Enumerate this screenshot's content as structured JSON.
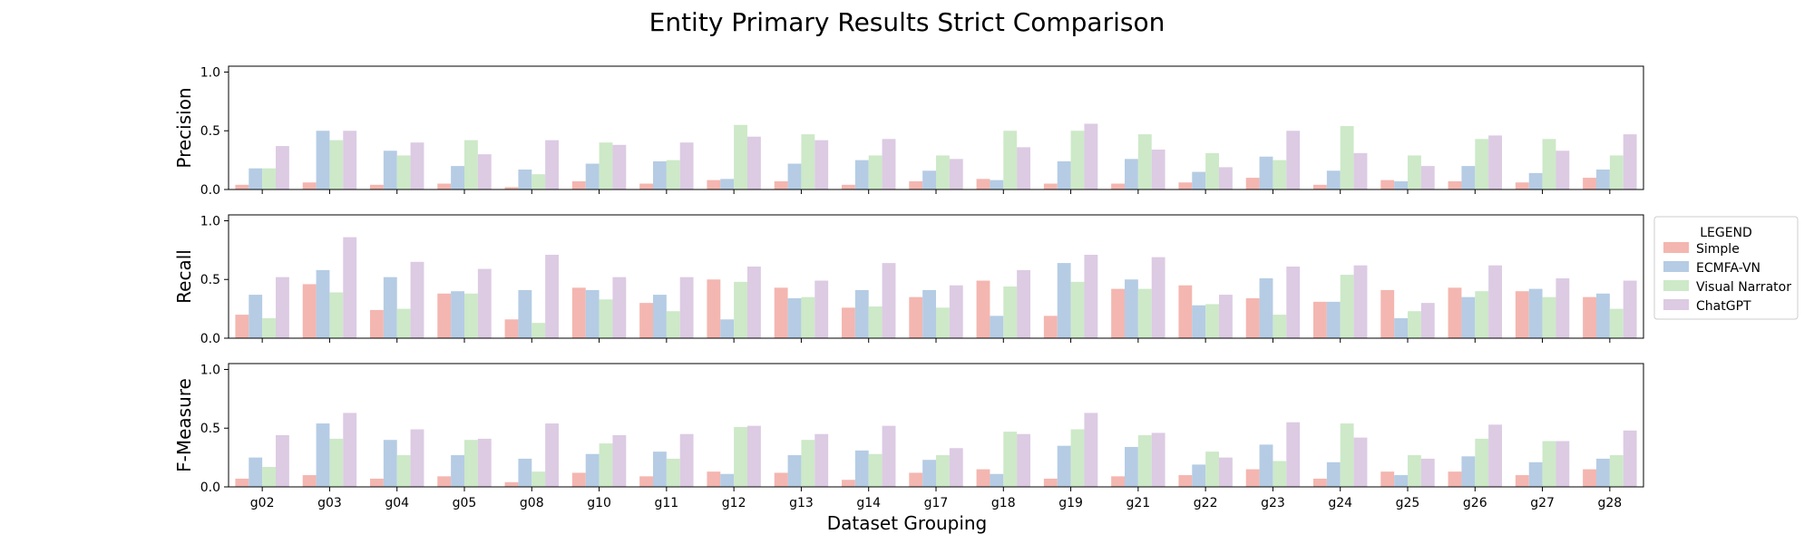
{
  "chart_data": {
    "type": "bar",
    "title": "Entity Primary Results Strict Comparison",
    "xlabel": "Dataset Grouping",
    "categories": [
      "g02",
      "g03",
      "g04",
      "g05",
      "g08",
      "g10",
      "g11",
      "g12",
      "g13",
      "g14",
      "g17",
      "g18",
      "g19",
      "g21",
      "g22",
      "g23",
      "g24",
      "g25",
      "g26",
      "g27",
      "g28"
    ],
    "ylim": [
      0,
      1.05
    ],
    "yticks": [
      "0.0",
      "0.5",
      "1.0"
    ],
    "grid": false,
    "legend": {
      "title": "LEGEND",
      "placement": "right",
      "entries": [
        "Simple",
        "ECMFA-VN",
        "Visual Narrator",
        "ChatGPT"
      ]
    },
    "colors": {
      "Simple": "#f4b6b0",
      "ECMFA-VN": "#b5cce4",
      "Visual Narrator": "#cde9c8",
      "ChatGPT": "#dccbe3"
    },
    "panels": [
      {
        "ylabel": "Precision",
        "series": [
          {
            "name": "Simple",
            "values": [
              0.04,
              0.06,
              0.04,
              0.05,
              0.02,
              0.07,
              0.05,
              0.08,
              0.07,
              0.04,
              0.07,
              0.09,
              0.05,
              0.05,
              0.06,
              0.1,
              0.04,
              0.08,
              0.07,
              0.06,
              0.1
            ]
          },
          {
            "name": "ECMFA-VN",
            "values": [
              0.18,
              0.5,
              0.33,
              0.2,
              0.17,
              0.22,
              0.24,
              0.09,
              0.22,
              0.25,
              0.16,
              0.08,
              0.24,
              0.26,
              0.15,
              0.28,
              0.16,
              0.07,
              0.2,
              0.14,
              0.17
            ]
          },
          {
            "name": "Visual Narrator",
            "values": [
              0.18,
              0.42,
              0.29,
              0.42,
              0.13,
              0.4,
              0.25,
              0.55,
              0.47,
              0.29,
              0.29,
              0.5,
              0.5,
              0.47,
              0.31,
              0.25,
              0.54,
              0.29,
              0.43,
              0.43,
              0.29
            ]
          },
          {
            "name": "ChatGPT",
            "values": [
              0.37,
              0.5,
              0.4,
              0.3,
              0.42,
              0.38,
              0.4,
              0.45,
              0.42,
              0.43,
              0.26,
              0.36,
              0.56,
              0.34,
              0.19,
              0.5,
              0.31,
              0.2,
              0.46,
              0.33,
              0.47
            ]
          }
        ]
      },
      {
        "ylabel": "Recall",
        "series": [
          {
            "name": "Simple",
            "values": [
              0.2,
              0.46,
              0.24,
              0.38,
              0.16,
              0.43,
              0.3,
              0.5,
              0.43,
              0.26,
              0.35,
              0.49,
              0.19,
              0.42,
              0.45,
              0.34,
              0.31,
              0.41,
              0.43,
              0.4,
              0.35
            ]
          },
          {
            "name": "ECMFA-VN",
            "values": [
              0.37,
              0.58,
              0.52,
              0.4,
              0.41,
              0.41,
              0.37,
              0.16,
              0.34,
              0.41,
              0.41,
              0.19,
              0.64,
              0.5,
              0.28,
              0.51,
              0.31,
              0.17,
              0.35,
              0.42,
              0.38
            ]
          },
          {
            "name": "Visual Narrator",
            "values": [
              0.17,
              0.39,
              0.25,
              0.38,
              0.13,
              0.33,
              0.23,
              0.48,
              0.35,
              0.27,
              0.26,
              0.44,
              0.48,
              0.42,
              0.29,
              0.2,
              0.54,
              0.23,
              0.4,
              0.35,
              0.25
            ]
          },
          {
            "name": "ChatGPT",
            "values": [
              0.52,
              0.86,
              0.65,
              0.59,
              0.71,
              0.52,
              0.52,
              0.61,
              0.49,
              0.64,
              0.45,
              0.58,
              0.71,
              0.69,
              0.37,
              0.61,
              0.62,
              0.3,
              0.62,
              0.51,
              0.49
            ]
          }
        ]
      },
      {
        "ylabel": "F-Measure",
        "series": [
          {
            "name": "Simple",
            "values": [
              0.07,
              0.1,
              0.07,
              0.09,
              0.04,
              0.12,
              0.09,
              0.13,
              0.12,
              0.06,
              0.12,
              0.15,
              0.07,
              0.09,
              0.1,
              0.15,
              0.07,
              0.13,
              0.13,
              0.1,
              0.15
            ]
          },
          {
            "name": "ECMFA-VN",
            "values": [
              0.25,
              0.54,
              0.4,
              0.27,
              0.24,
              0.28,
              0.3,
              0.11,
              0.27,
              0.31,
              0.23,
              0.11,
              0.35,
              0.34,
              0.19,
              0.36,
              0.21,
              0.1,
              0.26,
              0.21,
              0.24
            ]
          },
          {
            "name": "Visual Narrator",
            "values": [
              0.17,
              0.41,
              0.27,
              0.4,
              0.13,
              0.37,
              0.24,
              0.51,
              0.4,
              0.28,
              0.27,
              0.47,
              0.49,
              0.44,
              0.3,
              0.22,
              0.54,
              0.27,
              0.41,
              0.39,
              0.27
            ]
          },
          {
            "name": "ChatGPT",
            "values": [
              0.44,
              0.63,
              0.49,
              0.41,
              0.54,
              0.44,
              0.45,
              0.52,
              0.45,
              0.52,
              0.33,
              0.45,
              0.63,
              0.46,
              0.25,
              0.55,
              0.42,
              0.24,
              0.53,
              0.39,
              0.48
            ]
          }
        ]
      }
    ]
  }
}
